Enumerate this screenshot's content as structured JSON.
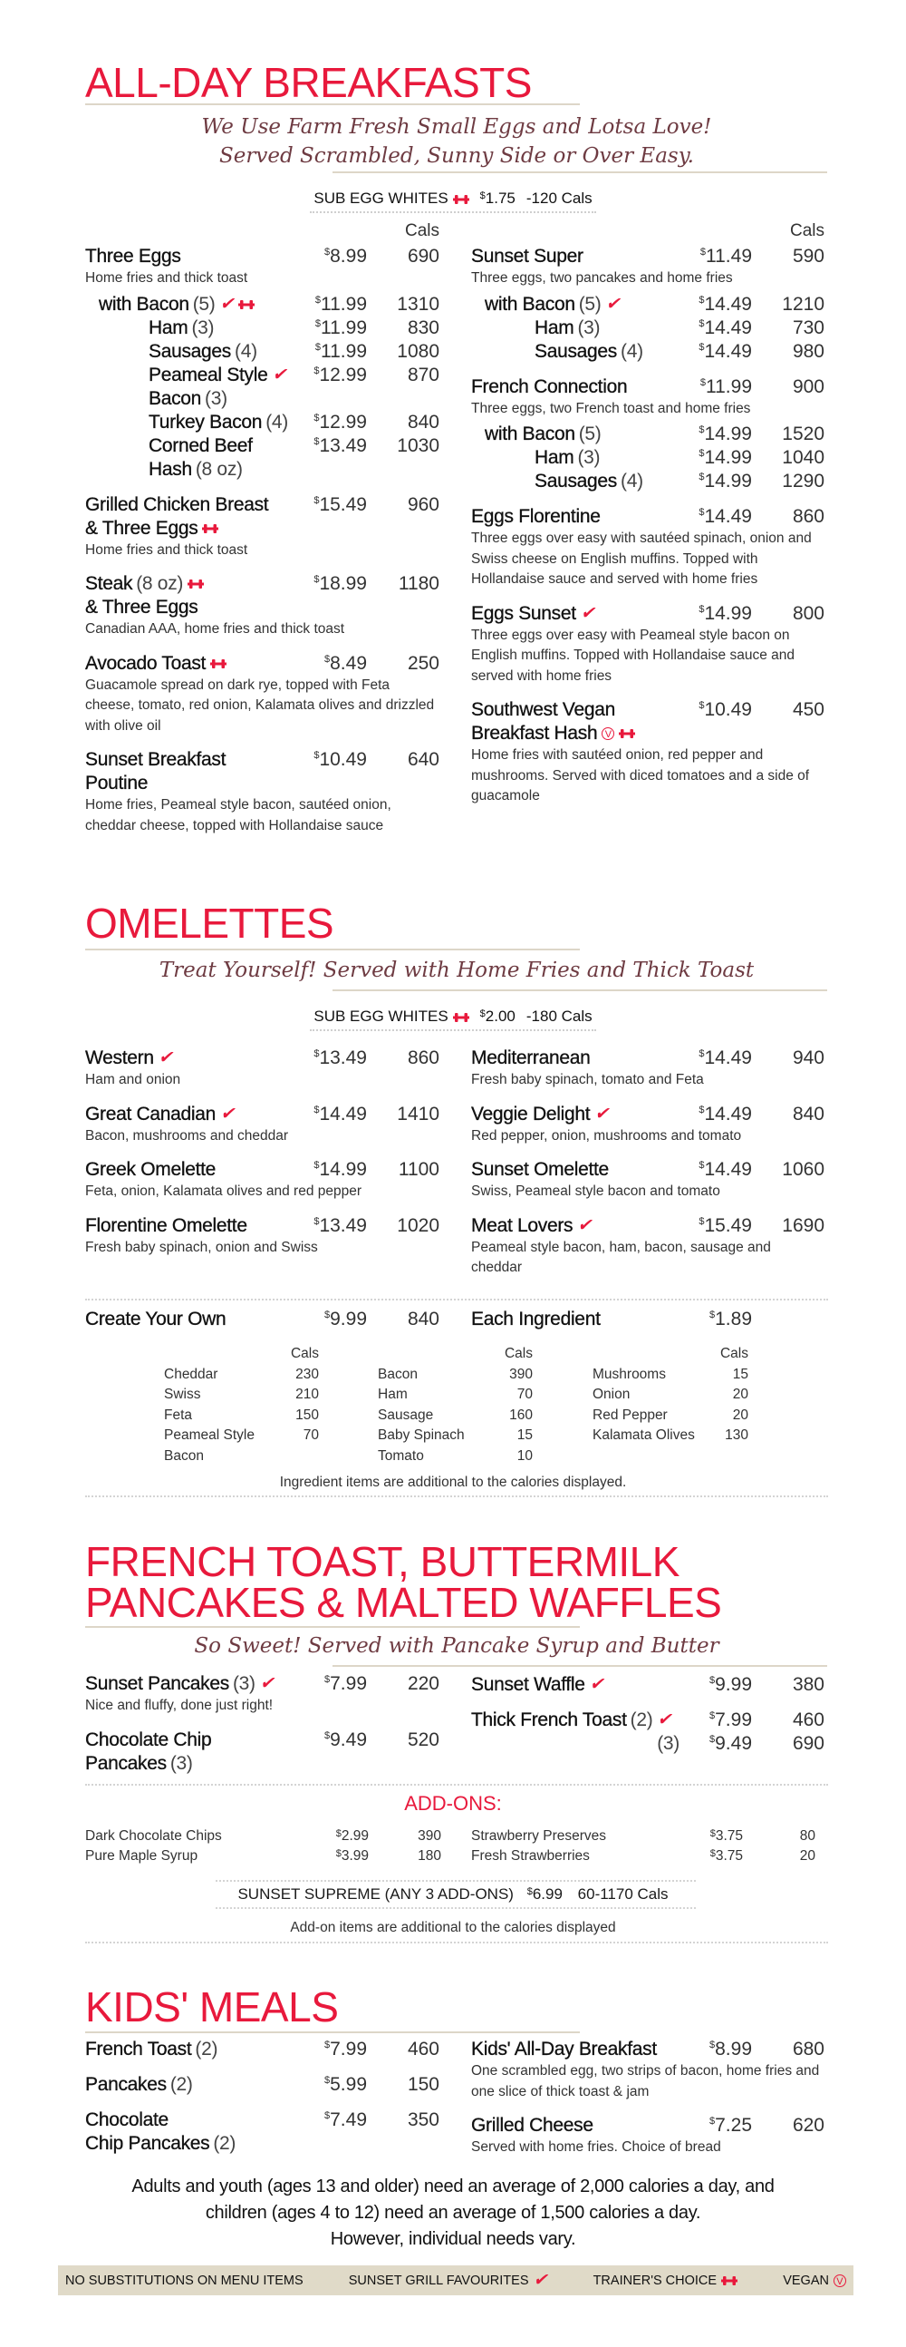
{
  "currency": "$",
  "colors": {
    "accent_red": "#e8193c",
    "script_brown": "#6e3b42",
    "rule": "#ddd6c8",
    "legend_bg": "#e0dac8"
  },
  "icons": {
    "fav": "check-icon",
    "trainer": "dumbbell-icon",
    "vegan": "circled-v-icon"
  },
  "breakfast": {
    "title": "ALL-DAY BREAKFASTS",
    "tagline": [
      "We Use Farm Fresh Small Eggs and Lotsa Love!",
      "Served Scrambled, Sunny Side or Over Easy."
    ],
    "sub": {
      "label": "SUB EGG WHITES",
      "mark": "trainer",
      "price": "1.75",
      "cals": "-120 Cals"
    },
    "cals_header": "Cals",
    "left": [
      {
        "lines": [
          [
            {
              "t": "Three Eggs"
            }
          ]
        ],
        "price": "8.99",
        "cals": "690",
        "desc": "Home fries and thick toast",
        "variants": [
          {
            "lines": [
              [
                {
                  "t": "with Bacon"
                },
                {
                  "q": "(5)"
                },
                {
                  "m": "fav"
                },
                {
                  "m": "trainer"
                }
              ]
            ],
            "price": "11.99",
            "cals": "1310",
            "options": [
              {
                "lines": [
                  [
                    {
                      "t": "Ham"
                    },
                    {
                      "q": "(3)"
                    }
                  ]
                ],
                "price": "11.99",
                "cals": "830"
              },
              {
                "lines": [
                  [
                    {
                      "t": "Sausages"
                    },
                    {
                      "q": "(4)"
                    }
                  ]
                ],
                "price": "11.99",
                "cals": "1080"
              },
              {
                "lines": [
                  [
                    {
                      "t": "Peameal Style"
                    },
                    {
                      "m": "fav"
                    }
                  ],
                  [
                    {
                      "t": "Bacon"
                    },
                    {
                      "q": "(3)"
                    }
                  ]
                ],
                "price": "12.99",
                "cals": "870"
              },
              {
                "lines": [
                  [
                    {
                      "t": "Turkey Bacon"
                    },
                    {
                      "q": "(4)"
                    }
                  ]
                ],
                "price": "12.99",
                "cals": "840"
              },
              {
                "lines": [
                  [
                    {
                      "t": "Corned Beef"
                    }
                  ],
                  [
                    {
                      "t": "Hash"
                    },
                    {
                      "q": "(8 oz)"
                    }
                  ]
                ],
                "price": "13.49",
                "cals": "1030"
              }
            ]
          }
        ]
      },
      {
        "lines": [
          [
            {
              "t": "Grilled Chicken Breast"
            }
          ],
          [
            {
              "t": "& Three Eggs"
            },
            {
              "m": "trainer"
            }
          ]
        ],
        "price": "15.49",
        "cals": "960",
        "desc": "Home fries and thick toast"
      },
      {
        "lines": [
          [
            {
              "t": "Steak"
            },
            {
              "q": "(8 oz)"
            },
            {
              "m": "trainer"
            }
          ],
          [
            {
              "t": "& Three Eggs"
            }
          ]
        ],
        "price": "18.99",
        "cals": "1180",
        "desc": "Canadian AAA, home fries and thick toast"
      },
      {
        "lines": [
          [
            {
              "t": "Avocado Toast"
            },
            {
              "m": "trainer"
            }
          ]
        ],
        "price": "8.49",
        "cals": "250",
        "desc": "Guacamole spread on dark rye, topped with Feta cheese, tomato, red onion, Kalamata olives and drizzled with olive oil"
      },
      {
        "lines": [
          [
            {
              "t": "Sunset Breakfast"
            }
          ],
          [
            {
              "t": "Poutine"
            }
          ]
        ],
        "price": "10.49",
        "cals": "640",
        "desc": "Home fries, Peameal style bacon, sautéed onion, cheddar cheese, topped with Hollandaise sauce"
      }
    ],
    "right": [
      {
        "lines": [
          [
            {
              "t": "Sunset Super"
            }
          ]
        ],
        "price": "11.49",
        "cals": "590",
        "desc": "Three eggs, two pancakes and home fries",
        "variants": [
          {
            "lines": [
              [
                {
                  "t": "with Bacon"
                },
                {
                  "q": "(5)"
                },
                {
                  "m": "fav"
                }
              ]
            ],
            "price": "14.49",
            "cals": "1210",
            "options": [
              {
                "lines": [
                  [
                    {
                      "t": "Ham"
                    },
                    {
                      "q": "(3)"
                    }
                  ]
                ],
                "price": "14.49",
                "cals": "730"
              },
              {
                "lines": [
                  [
                    {
                      "t": "Sausages"
                    },
                    {
                      "q": "(4)"
                    }
                  ]
                ],
                "price": "14.49",
                "cals": "980"
              }
            ]
          }
        ]
      },
      {
        "lines": [
          [
            {
              "t": "French Connection"
            }
          ]
        ],
        "price": "11.99",
        "cals": "900",
        "desc": "Three eggs, two French toast and home fries",
        "variants": [
          {
            "lines": [
              [
                {
                  "t": "with Bacon"
                },
                {
                  "q": "(5)"
                }
              ]
            ],
            "price": "14.99",
            "cals": "1520",
            "options": [
              {
                "lines": [
                  [
                    {
                      "t": "Ham"
                    },
                    {
                      "q": "(3)"
                    }
                  ]
                ],
                "price": "14.99",
                "cals": "1040"
              },
              {
                "lines": [
                  [
                    {
                      "t": "Sausages"
                    },
                    {
                      "q": "(4)"
                    }
                  ]
                ],
                "price": "14.99",
                "cals": "1290"
              }
            ]
          }
        ]
      },
      {
        "lines": [
          [
            {
              "t": "Eggs Florentine"
            }
          ]
        ],
        "price": "14.49",
        "cals": "860",
        "desc": "Three eggs over easy with sautéed spinach, onion and Swiss cheese on English muffins. Topped with Hollandaise sauce and served with home fries"
      },
      {
        "lines": [
          [
            {
              "t": "Eggs Sunset"
            },
            {
              "m": "fav"
            }
          ]
        ],
        "price": "14.99",
        "cals": "800",
        "desc": "Three eggs over easy with Peameal style bacon on English muffins. Topped with Hollandaise sauce and served with home fries"
      },
      {
        "lines": [
          [
            {
              "t": "Southwest Vegan"
            }
          ],
          [
            {
              "t": "Breakfast Hash"
            },
            {
              "m": "vegan"
            },
            {
              "m": "trainer"
            }
          ]
        ],
        "price": "10.49",
        "cals": "450",
        "desc": "Home fries with sautéed onion, red pepper and mushrooms. Served with diced tomatoes and a side of guacamole"
      }
    ]
  },
  "omelettes": {
    "title": "OMELETTES",
    "tagline": [
      "Treat Yourself! Served with Home Fries and Thick Toast"
    ],
    "sub": {
      "label": "SUB EGG WHITES",
      "mark": "trainer",
      "price": "2.00",
      "cals": "-180 Cals"
    },
    "left": [
      {
        "lines": [
          [
            {
              "t": "Western"
            },
            {
              "m": "fav"
            }
          ]
        ],
        "price": "13.49",
        "cals": "860",
        "desc": "Ham and onion"
      },
      {
        "lines": [
          [
            {
              "t": "Great Canadian"
            },
            {
              "m": "fav"
            }
          ]
        ],
        "price": "14.49",
        "cals": "1410",
        "desc": "Bacon, mushrooms and cheddar"
      },
      {
        "lines": [
          [
            {
              "t": "Greek Omelette"
            }
          ]
        ],
        "price": "14.99",
        "cals": "1100",
        "desc": "Feta, onion, Kalamata olives and red pepper"
      },
      {
        "lines": [
          [
            {
              "t": "Florentine Omelette"
            }
          ]
        ],
        "price": "13.49",
        "cals": "1020",
        "desc": "Fresh baby spinach, onion and Swiss"
      }
    ],
    "right": [
      {
        "lines": [
          [
            {
              "t": "Mediterranean"
            }
          ]
        ],
        "price": "14.49",
        "cals": "940",
        "desc": "Fresh baby spinach, tomato and Feta"
      },
      {
        "lines": [
          [
            {
              "t": "Veggie Delight"
            },
            {
              "m": "fav"
            }
          ]
        ],
        "price": "14.49",
        "cals": "840",
        "desc": "Red pepper, onion, mushrooms and tomato"
      },
      {
        "lines": [
          [
            {
              "t": "Sunset Omelette"
            }
          ]
        ],
        "price": "14.49",
        "cals": "1060",
        "desc": "Swiss, Peameal style bacon and tomato"
      },
      {
        "lines": [
          [
            {
              "t": "Meat Lovers"
            },
            {
              "m": "fav"
            }
          ]
        ],
        "price": "15.49",
        "cals": "1690",
        "desc": "Peameal style bacon, ham, bacon, sausage and cheddar"
      }
    ],
    "create_left": [
      {
        "lines": [
          [
            {
              "t": "Create Your Own"
            }
          ]
        ],
        "price": "9.99",
        "cals": "840"
      }
    ],
    "create_right": [
      {
        "lines": [
          [
            {
              "t": "Each Ingredient"
            }
          ]
        ],
        "price": "1.89"
      }
    ],
    "ingredients": [
      {
        "header": "Cals",
        "rows": [
          {
            "name": "Cheddar",
            "cals": "230"
          },
          {
            "name": "Swiss",
            "cals": "210"
          },
          {
            "name": "Feta",
            "cals": "150"
          },
          {
            "name": "Peameal Style Bacon",
            "cals": "70"
          }
        ]
      },
      {
        "header": "Cals",
        "rows": [
          {
            "name": "Bacon",
            "cals": "390"
          },
          {
            "name": "Ham",
            "cals": "70"
          },
          {
            "name": "Sausage",
            "cals": "160"
          },
          {
            "name": "Baby Spinach",
            "cals": "15"
          },
          {
            "name": "Tomato",
            "cals": "10"
          }
        ]
      },
      {
        "header": "Cals",
        "rows": [
          {
            "name": "Mushrooms",
            "cals": "15"
          },
          {
            "name": "Onion",
            "cals": "20"
          },
          {
            "name": "Red Pepper",
            "cals": "20"
          },
          {
            "name": "Kalamata Olives",
            "cals": "130"
          }
        ]
      }
    ],
    "note": "Ingredient items are additional to the calories displayed."
  },
  "french": {
    "title": [
      "FRENCH TOAST, BUTTERMILK",
      "PANCAKES & MALTED WAFFLES"
    ],
    "tagline": [
      "So Sweet! Served with Pancake Syrup and Butter"
    ],
    "left": [
      {
        "lines": [
          [
            {
              "t": "Sunset Pancakes"
            },
            {
              "q": "(3)"
            },
            {
              "m": "fav"
            }
          ]
        ],
        "price": "7.99",
        "cals": "220",
        "desc": "Nice and fluffy, done just right!"
      },
      {
        "lines": [
          [
            {
              "t": "Chocolate Chip"
            }
          ],
          [
            {
              "t": "Pancakes"
            },
            {
              "q": "(3)"
            }
          ]
        ],
        "price": "9.49",
        "cals": "520"
      }
    ],
    "right": [
      {
        "lines": [
          [
            {
              "t": "Sunset Waffle"
            },
            {
              "m": "fav"
            }
          ]
        ],
        "price": "9.99",
        "cals": "380"
      },
      {
        "lines": [
          [
            {
              "t": "Thick French Toast"
            },
            {
              "q": "(2)"
            },
            {
              "m": "fav"
            }
          ]
        ],
        "price": "7.99",
        "cals": "460",
        "more": [
          {
            "lines": [
              [
                {
                  "q": "(3)"
                }
              ]
            ],
            "price": "9.49",
            "cals": "690"
          }
        ]
      }
    ],
    "addons_title": "ADD-ONS:",
    "addons_left": [
      {
        "name": "Dark Chocolate Chips",
        "price": "2.99",
        "cals": "390"
      },
      {
        "name": "Pure Maple Syrup",
        "price": "3.99",
        "cals": "180"
      }
    ],
    "addons_right": [
      {
        "name": "Strawberry Preserves",
        "price": "3.75",
        "cals": "80"
      },
      {
        "name": "Fresh Strawberries",
        "price": "3.75",
        "cals": "20"
      }
    ],
    "supreme": {
      "label": "SUNSET SUPREME (ANY 3 ADD-ONS)",
      "price": "6.99",
      "cals": "60-1170 Cals"
    },
    "note": "Add-on items are additional to the calories displayed"
  },
  "kids": {
    "title": "KIDS' MEALS",
    "left": [
      {
        "lines": [
          [
            {
              "t": "French Toast"
            },
            {
              "q": "(2)"
            }
          ]
        ],
        "price": "7.99",
        "cals": "460"
      },
      {
        "lines": [
          [
            {
              "t": "Pancakes"
            },
            {
              "q": "(2)"
            }
          ]
        ],
        "price": "5.99",
        "cals": "150"
      },
      {
        "lines": [
          [
            {
              "t": "Chocolate"
            }
          ],
          [
            {
              "t": "Chip Pancakes"
            },
            {
              "q": "(2)"
            }
          ]
        ],
        "price": "7.49",
        "cals": "350"
      }
    ],
    "right": [
      {
        "lines": [
          [
            {
              "t": "Kids' All-Day Breakfast"
            }
          ]
        ],
        "price": "8.99",
        "cals": "680",
        "desc": "One scrambled egg, two strips of bacon, home fries and one slice of thick toast & jam"
      },
      {
        "lines": [
          [
            {
              "t": "Grilled Cheese"
            }
          ]
        ],
        "price": "7.25",
        "cals": "620",
        "desc": "Served with home fries. Choice of bread"
      }
    ]
  },
  "disclaimer": [
    "Adults and youth (ages 13 and older) need an average of 2,000 calories a day, and",
    "children (ages 4 to 12) need an average of 1,500 calories a day.",
    "However, individual needs vary."
  ],
  "legend": [
    {
      "label": "NO SUBSTITUTIONS ON MENU ITEMS"
    },
    {
      "label": "SUNSET GRILL FAVOURITES",
      "icon": "fav"
    },
    {
      "label": "TRAINER'S CHOICE",
      "icon": "trainer"
    },
    {
      "label": "VEGAN",
      "icon": "vegan"
    }
  ]
}
